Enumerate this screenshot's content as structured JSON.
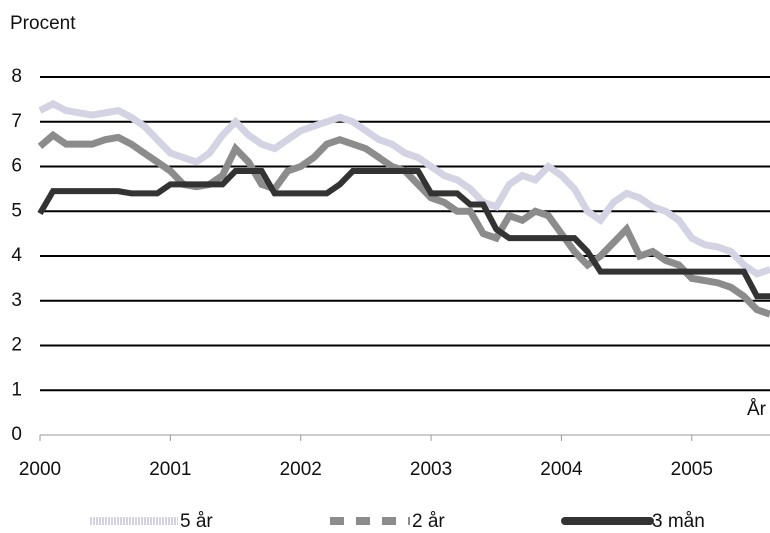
{
  "chart_data": {
    "type": "line",
    "y_label": "Procent",
    "x_label": "År",
    "x": [
      2000.0,
      2000.1,
      2000.2,
      2000.3,
      2000.4,
      2000.5,
      2000.6,
      2000.7,
      2000.8,
      2000.9,
      2001.0,
      2001.1,
      2001.2,
      2001.3,
      2001.4,
      2001.5,
      2001.6,
      2001.7,
      2001.8,
      2001.9,
      2002.0,
      2002.1,
      2002.2,
      2002.3,
      2002.4,
      2002.5,
      2002.6,
      2002.7,
      2002.8,
      2002.9,
      2003.0,
      2003.1,
      2003.2,
      2003.3,
      2003.4,
      2003.5,
      2003.6,
      2003.7,
      2003.8,
      2003.9,
      2004.0,
      2004.1,
      2004.2,
      2004.3,
      2004.4,
      2004.5,
      2004.6,
      2004.7,
      2004.8,
      2004.9,
      2005.0,
      2005.1,
      2005.2,
      2005.3,
      2005.4,
      2005.5,
      2005.6
    ],
    "series": [
      {
        "name": "5 år",
        "color": "#d3d3e3",
        "values": [
          7.25,
          7.4,
          7.25,
          7.2,
          7.15,
          7.2,
          7.25,
          7.1,
          6.9,
          6.6,
          6.3,
          6.2,
          6.1,
          6.3,
          6.7,
          7.0,
          6.7,
          6.5,
          6.4,
          6.6,
          6.8,
          6.9,
          7.0,
          7.1,
          7.0,
          6.8,
          6.6,
          6.5,
          6.3,
          6.2,
          6.0,
          5.8,
          5.7,
          5.5,
          5.2,
          5.1,
          5.6,
          5.8,
          5.7,
          6.0,
          5.8,
          5.5,
          5.0,
          4.8,
          5.2,
          5.4,
          5.3,
          5.1,
          5.0,
          4.8,
          4.4,
          4.25,
          4.2,
          4.1,
          3.8,
          3.6,
          3.7
        ]
      },
      {
        "name": "2 år",
        "color": "#8c8c8c",
        "values": [
          6.45,
          6.7,
          6.5,
          6.5,
          6.5,
          6.6,
          6.65,
          6.5,
          6.3,
          6.1,
          5.9,
          5.6,
          5.55,
          5.6,
          5.8,
          6.4,
          6.1,
          5.6,
          5.5,
          5.9,
          6.0,
          6.2,
          6.5,
          6.6,
          6.5,
          6.4,
          6.2,
          6.0,
          5.9,
          5.6,
          5.3,
          5.2,
          5.0,
          5.0,
          4.5,
          4.4,
          4.9,
          4.8,
          5.0,
          4.9,
          4.5,
          4.1,
          3.8,
          4.0,
          4.3,
          4.6,
          4.0,
          4.1,
          3.9,
          3.8,
          3.5,
          3.45,
          3.4,
          3.3,
          3.1,
          2.8,
          2.7
        ]
      },
      {
        "name": "3 mån",
        "color": "#333333",
        "values": [
          4.95,
          5.45,
          5.45,
          5.45,
          5.45,
          5.45,
          5.45,
          5.4,
          5.4,
          5.4,
          5.6,
          5.6,
          5.6,
          5.6,
          5.6,
          5.9,
          5.9,
          5.9,
          5.4,
          5.4,
          5.4,
          5.4,
          5.4,
          5.6,
          5.9,
          5.9,
          5.9,
          5.9,
          5.9,
          5.9,
          5.4,
          5.4,
          5.4,
          5.15,
          5.15,
          4.6,
          4.4,
          4.4,
          4.4,
          4.4,
          4.4,
          4.4,
          4.1,
          3.65,
          3.65,
          3.65,
          3.65,
          3.65,
          3.65,
          3.65,
          3.65,
          3.65,
          3.65,
          3.65,
          3.65,
          3.1,
          3.1
        ]
      }
    ],
    "xlim": [
      2000,
      2005.6
    ],
    "xticks": [
      2000,
      2001,
      2002,
      2003,
      2004,
      2005
    ],
    "ylim": [
      0,
      8
    ],
    "yticks": [
      0,
      1,
      2,
      3,
      4,
      5,
      6,
      7,
      8
    ],
    "grid": true
  }
}
